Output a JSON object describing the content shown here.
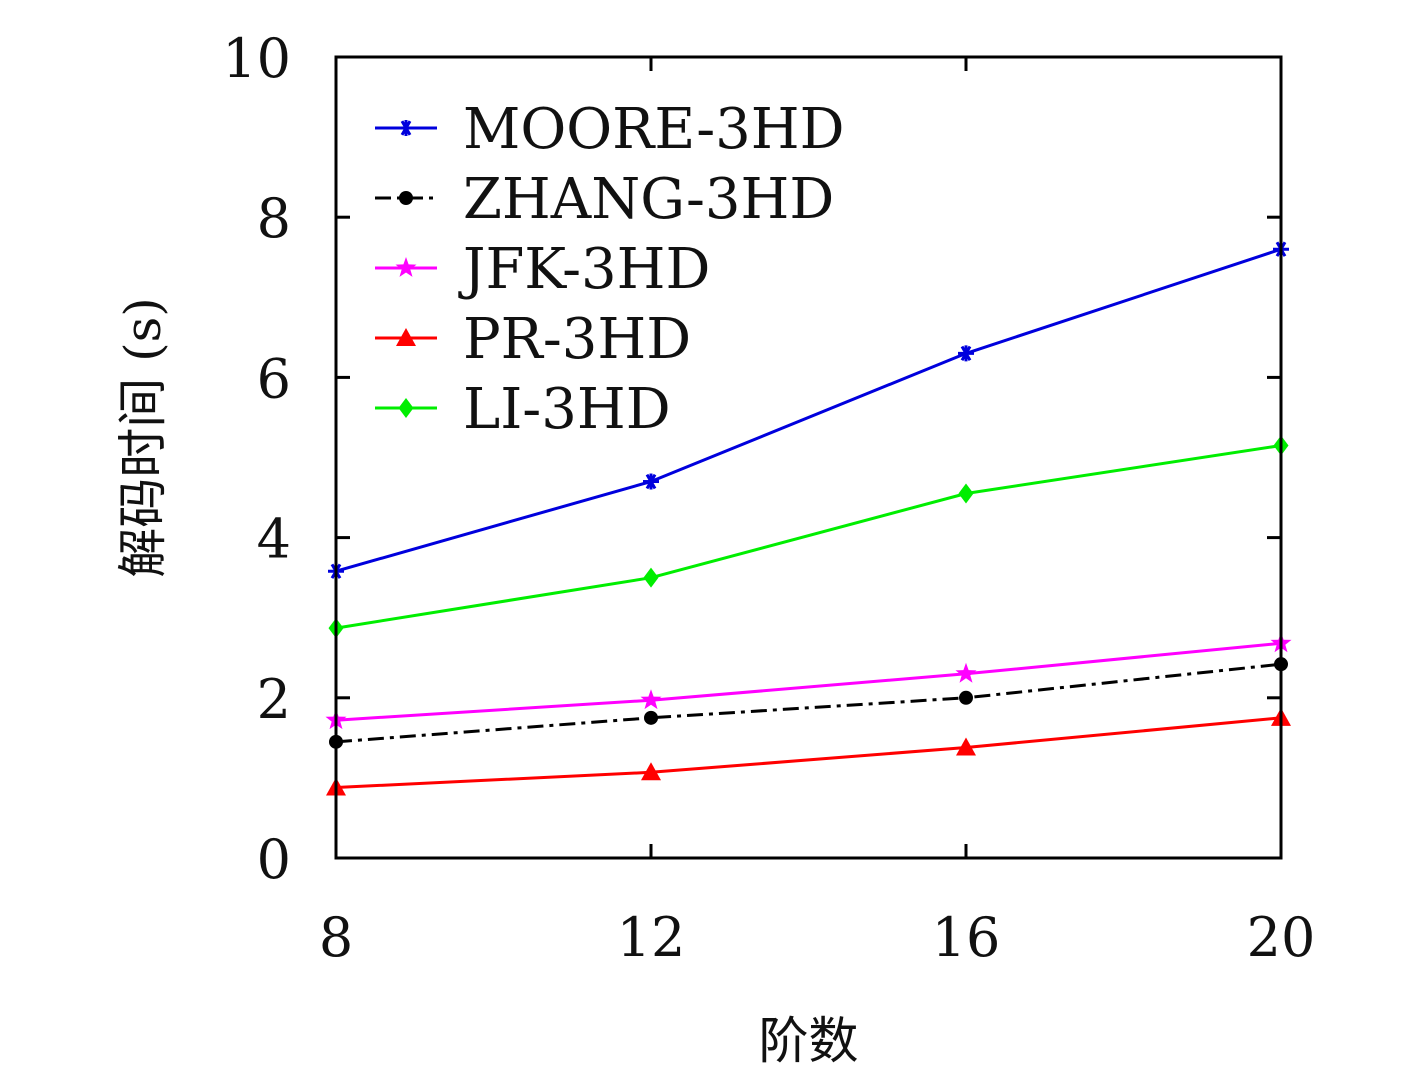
{
  "chart_data": {
    "type": "line",
    "xlabel": "阶数",
    "ylabel": "解码时间 (s)",
    "x": [
      8,
      12,
      16,
      20
    ],
    "xticks": [
      8,
      12,
      16,
      20
    ],
    "yticks": [
      0,
      2,
      4,
      6,
      8,
      10
    ],
    "xlim": [
      8,
      20
    ],
    "ylim": [
      0,
      10
    ],
    "grid": false,
    "legend_position": "top-left",
    "series": [
      {
        "name": "MOORE-3HD",
        "color": "#0000dd",
        "marker": "asterisk",
        "dash": "solid",
        "values": [
          3.58,
          4.7,
          6.3,
          7.6
        ]
      },
      {
        "name": "ZHANG-3HD",
        "color": "#000000",
        "marker": "circle",
        "dash": "dashdot",
        "values": [
          1.45,
          1.75,
          2.0,
          2.42
        ]
      },
      {
        "name": "JFK-3HD",
        "color": "#ff00ff",
        "marker": "star",
        "dash": "solid",
        "values": [
          1.72,
          1.97,
          2.3,
          2.68
        ]
      },
      {
        "name": "PR-3HD",
        "color": "#ff0000",
        "marker": "triangle",
        "dash": "solid",
        "values": [
          0.88,
          1.07,
          1.38,
          1.75
        ]
      },
      {
        "name": "LI-3HD",
        "color": "#00ee00",
        "marker": "diamond",
        "dash": "solid",
        "values": [
          2.87,
          3.5,
          4.55,
          5.15
        ]
      }
    ]
  }
}
